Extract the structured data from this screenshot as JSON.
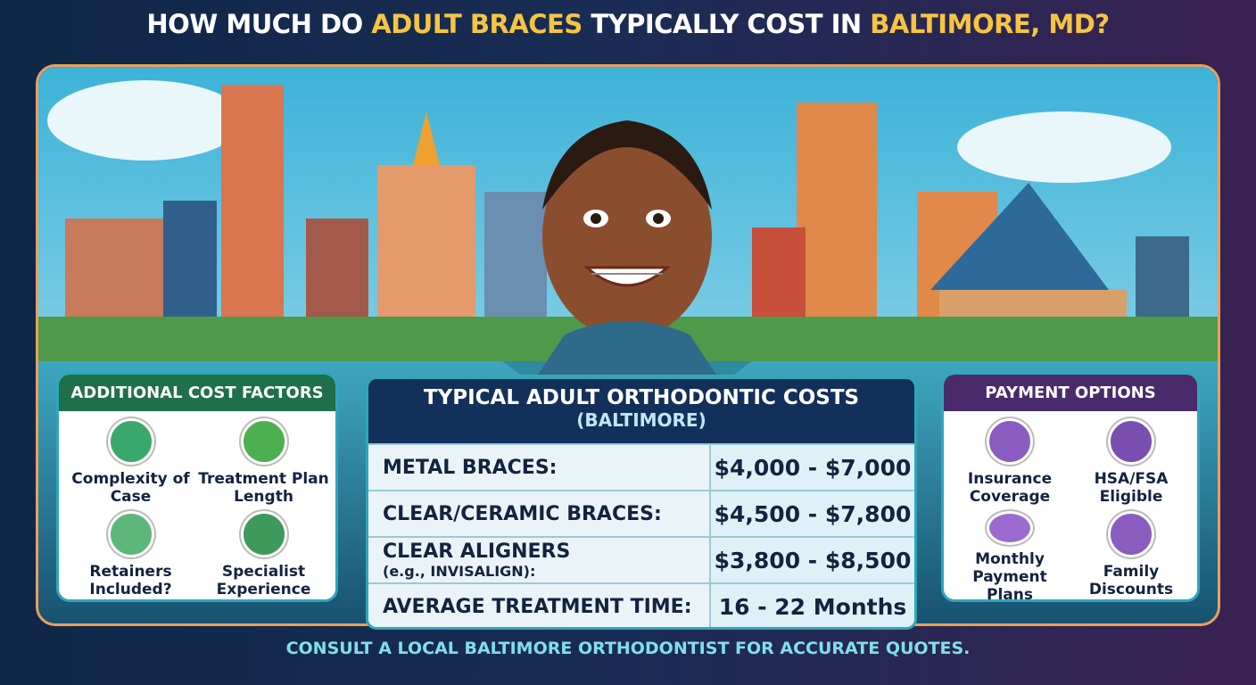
{
  "header": {
    "title_parts": [
      "HOW MUCH DO ",
      "ADULT BRACES",
      " TYPICALLY COST IN ",
      "BALTIMORE, MD?"
    ]
  },
  "left_panel": {
    "title": "ADDITIONAL COST FACTORS",
    "items": [
      "Complexity of Case",
      "Treatment Plan Length",
      "Retainers Included?",
      "Specialist Experience"
    ]
  },
  "table": {
    "title": "TYPICAL ADULT ORTHODONTIC COSTS",
    "subtitle": "(BALTIMORE)",
    "rows": [
      {
        "label": "METAL BRACES:",
        "value": "$4,000 - $7,000"
      },
      {
        "label": "CLEAR/CERAMIC BRACES:",
        "value": "$4,500 - $7,800"
      },
      {
        "label": "CLEAR ALIGNERS",
        "note": "(e.g., INVISALIGN):",
        "value": "$3,800 - $8,500"
      },
      {
        "label": "AVERAGE TREATMENT TIME:",
        "value": "16 - 22 Months"
      }
    ]
  },
  "right_panel": {
    "title": "PAYMENT OPTIONS",
    "items": [
      "Insurance Coverage",
      "HSA/FSA Eligible",
      "Monthly Payment Plans",
      "Family Discounts"
    ]
  },
  "footer": {
    "text": "CONSULT A LOCAL BALTIMORE ORTHODONTIST FOR ACCURATE QUOTES."
  }
}
